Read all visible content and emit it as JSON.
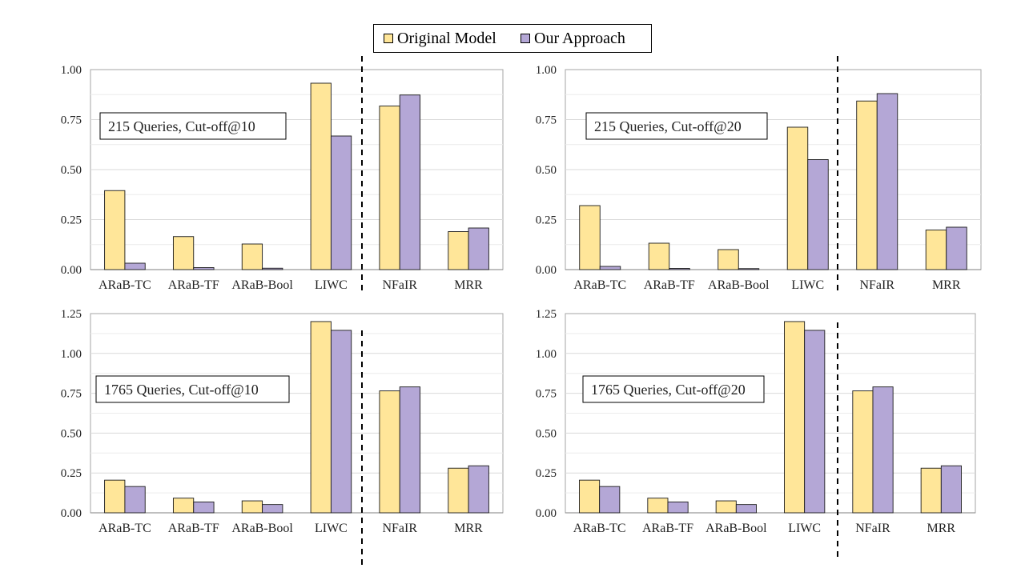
{
  "legend": {
    "items": [
      {
        "label": "Original Model",
        "color": "#FFE699"
      },
      {
        "label": "Our Approach",
        "color": "#B4A7D6"
      }
    ]
  },
  "chart_data": [
    {
      "type": "bar",
      "annotation": "215 Queries, Cut-off@10",
      "categories": [
        "ARaB-TC",
        "ARaB-TF",
        "ARaB-Bool",
        "LIWC",
        "NFaIR",
        "MRR"
      ],
      "series": [
        {
          "name": "Original Model",
          "color": "#FFE699",
          "values": [
            0.395,
            0.165,
            0.128,
            0.932,
            0.818,
            0.19
          ]
        },
        {
          "name": "Our Approach",
          "color": "#B4A7D6",
          "values": [
            0.032,
            0.01,
            0.007,
            0.668,
            0.873,
            0.208
          ]
        }
      ],
      "ylim": [
        0,
        1.0
      ],
      "yticks": [
        "0.00",
        "0.25",
        "0.50",
        "0.75",
        "1.00"
      ],
      "grid": true,
      "divider_after_category": 3
    },
    {
      "type": "bar",
      "annotation": "215 Queries, Cut-off@20",
      "categories": [
        "ARaB-TC",
        "ARaB-TF",
        "ARaB-Bool",
        "LIWC",
        "NFaIR",
        "MRR"
      ],
      "series": [
        {
          "name": "Original Model",
          "color": "#FFE699",
          "values": [
            0.32,
            0.132,
            0.1,
            0.712,
            0.843,
            0.198
          ]
        },
        {
          "name": "Our Approach",
          "color": "#B4A7D6",
          "values": [
            0.016,
            0.006,
            0.005,
            0.55,
            0.88,
            0.212
          ]
        }
      ],
      "ylim": [
        0,
        1.0
      ],
      "yticks": [
        "0.00",
        "0.25",
        "0.50",
        "0.75",
        "1.00"
      ],
      "grid": true,
      "divider_after_category": 3
    },
    {
      "type": "bar",
      "annotation": "1765 Queries, Cut-off@10",
      "categories": [
        "ARaB-TC",
        "ARaB-TF",
        "ARaB-Bool",
        "LIWC",
        "NFaIR",
        "MRR"
      ],
      "series": [
        {
          "name": "Original Model",
          "color": "#FFE699",
          "values": [
            0.205,
            0.092,
            0.075,
            1.2,
            0.765,
            0.28
          ]
        },
        {
          "name": "Our Approach",
          "color": "#B4A7D6",
          "values": [
            0.165,
            0.068,
            0.052,
            1.145,
            0.79,
            0.295
          ]
        }
      ],
      "ylim": [
        0,
        1.25
      ],
      "yticks": [
        "0.00",
        "0.25",
        "0.50",
        "0.75",
        "1.00",
        "1.25"
      ],
      "grid": true,
      "divider_after_category": 3
    },
    {
      "type": "bar",
      "annotation": "1765 Queries, Cut-off@20",
      "categories": [
        "ARaB-TC",
        "ARaB-TF",
        "ARaB-Bool",
        "LIWC",
        "NFaIR",
        "MRR"
      ],
      "series": [
        {
          "name": "Original Model",
          "color": "#FFE699",
          "values": [
            0.205,
            0.092,
            0.075,
            1.2,
            0.765,
            0.28
          ]
        },
        {
          "name": "Our Approach",
          "color": "#B4A7D6",
          "values": [
            0.165,
            0.068,
            0.052,
            1.145,
            0.79,
            0.295
          ]
        }
      ],
      "ylim": [
        0,
        1.25
      ],
      "yticks": [
        "0.00",
        "0.25",
        "0.50",
        "0.75",
        "1.00",
        "1.25"
      ],
      "grid": true,
      "divider_after_category": 3
    }
  ]
}
